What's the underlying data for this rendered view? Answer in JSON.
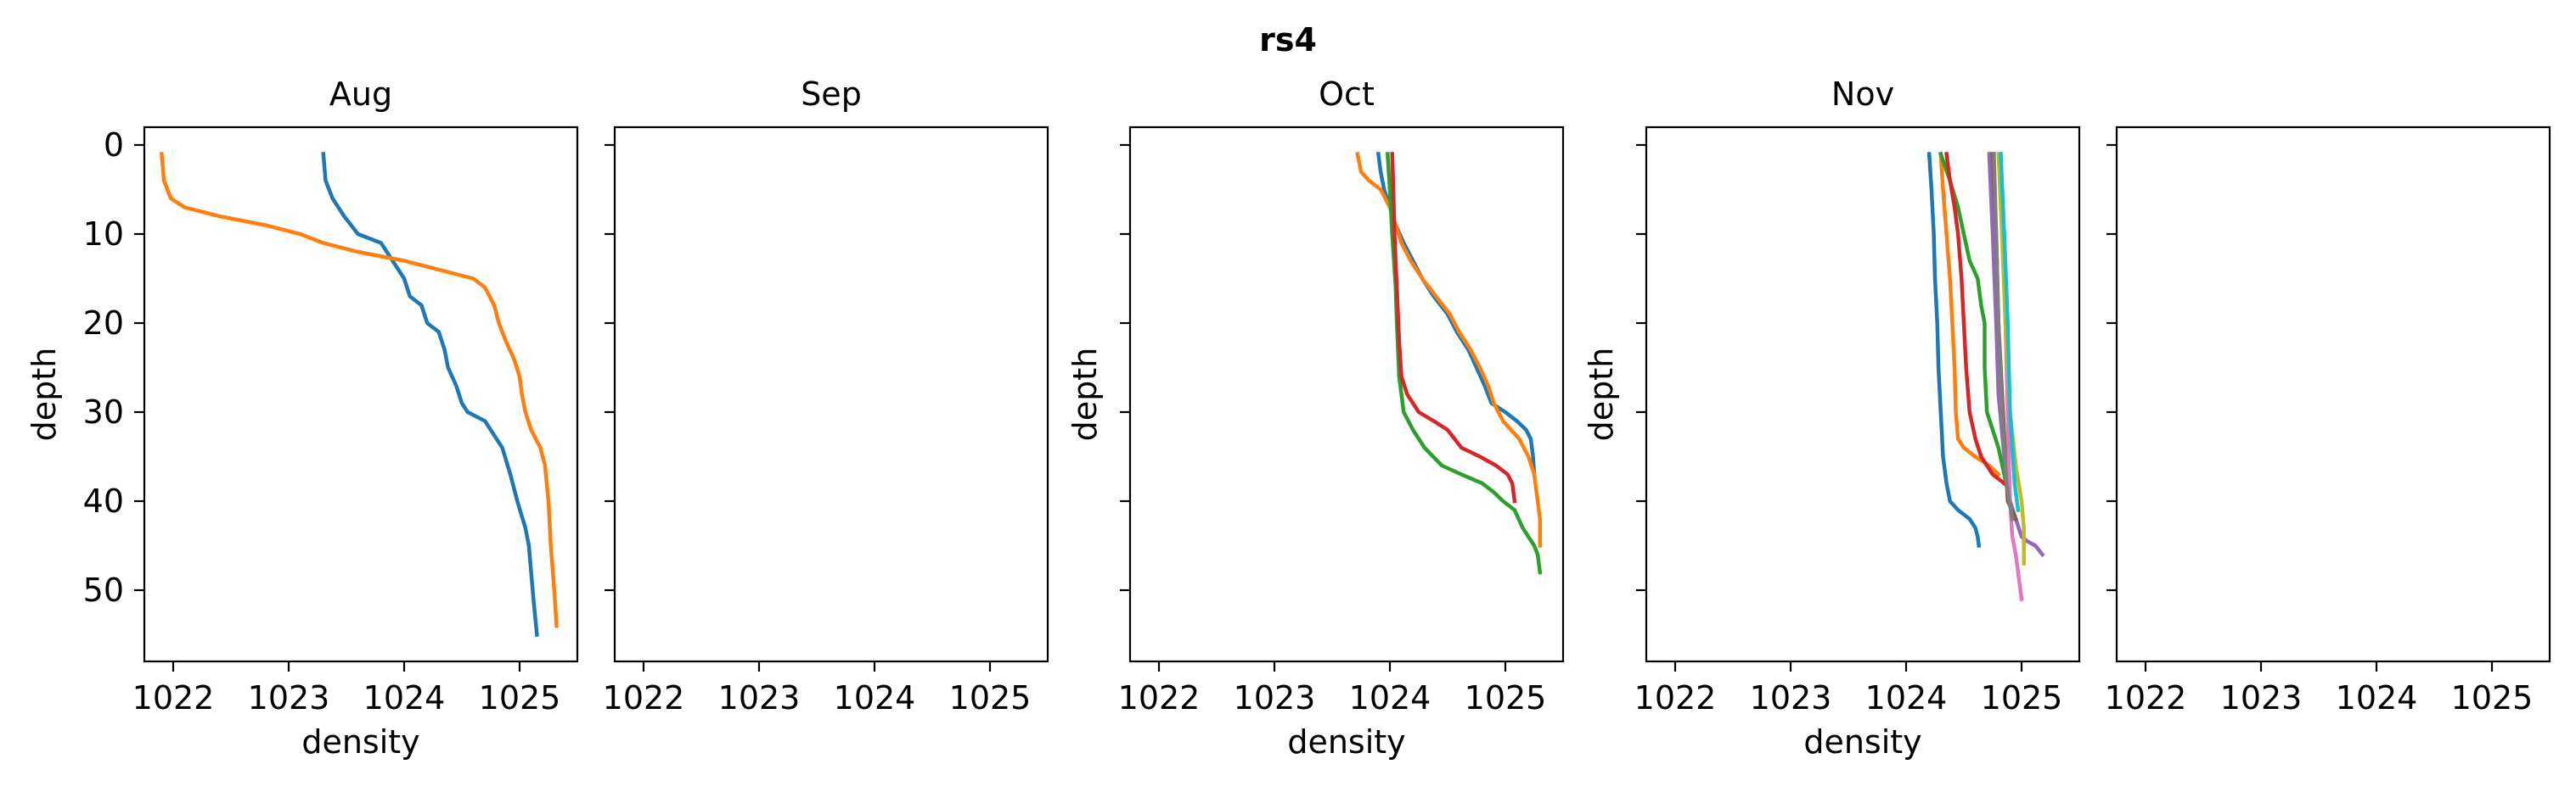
{
  "figure": {
    "suptitle": "rs4"
  },
  "colors": {
    "C0": "#1f77b4",
    "C1": "#ff7f0e",
    "C2": "#2ca02c",
    "C3": "#d62728",
    "C4": "#9467bd",
    "C5": "#8c564b",
    "C6": "#e377c2",
    "C7": "#7f7f7f",
    "C8": "#bcbd22",
    "C9": "#17becf"
  },
  "chart_data": [
    {
      "type": "line",
      "title": "Aug",
      "xlabel": "density",
      "ylabel": "depth",
      "xlim": [
        1021.75,
        1025.5
      ],
      "ylim": [
        58,
        -2
      ],
      "xticks": [
        1022,
        1023,
        1024,
        1025
      ],
      "yticks": [
        0,
        10,
        20,
        30,
        40,
        50
      ],
      "show_yticklabels": true,
      "series": [
        {
          "color": "C0",
          "points": [
            [
              1023.3,
              1
            ],
            [
              1023.32,
              4
            ],
            [
              1023.38,
              6
            ],
            [
              1023.48,
              8
            ],
            [
              1023.6,
              10
            ],
            [
              1023.8,
              11
            ],
            [
              1023.85,
              12
            ],
            [
              1023.9,
              13
            ],
            [
              1023.95,
              14
            ],
            [
              1024.0,
              15
            ],
            [
              1024.05,
              17
            ],
            [
              1024.15,
              18
            ],
            [
              1024.2,
              20
            ],
            [
              1024.3,
              21
            ],
            [
              1024.35,
              23
            ],
            [
              1024.38,
              25
            ],
            [
              1024.45,
              27
            ],
            [
              1024.5,
              29
            ],
            [
              1024.55,
              30
            ],
            [
              1024.7,
              31
            ],
            [
              1024.85,
              34
            ],
            [
              1024.92,
              37
            ],
            [
              1024.98,
              40
            ],
            [
              1025.05,
              43
            ],
            [
              1025.08,
              45
            ],
            [
              1025.1,
              48
            ],
            [
              1025.12,
              51
            ],
            [
              1025.15,
              55
            ]
          ]
        },
        {
          "color": "C1",
          "points": [
            [
              1021.9,
              1
            ],
            [
              1021.92,
              4
            ],
            [
              1021.98,
              6
            ],
            [
              1022.1,
              7
            ],
            [
              1022.4,
              8
            ],
            [
              1022.8,
              9
            ],
            [
              1023.1,
              10
            ],
            [
              1023.3,
              11
            ],
            [
              1023.6,
              12
            ],
            [
              1024.0,
              13
            ],
            [
              1024.3,
              14
            ],
            [
              1024.6,
              15
            ],
            [
              1024.7,
              16
            ],
            [
              1024.78,
              18
            ],
            [
              1024.82,
              20
            ],
            [
              1024.88,
              22
            ],
            [
              1024.95,
              24
            ],
            [
              1025.0,
              26
            ],
            [
              1025.02,
              28
            ],
            [
              1025.05,
              30
            ],
            [
              1025.1,
              32
            ],
            [
              1025.18,
              34
            ],
            [
              1025.22,
              36
            ],
            [
              1025.25,
              40
            ],
            [
              1025.27,
              45
            ],
            [
              1025.3,
              50
            ],
            [
              1025.32,
              54
            ]
          ]
        }
      ]
    },
    {
      "type": "line",
      "title": "Sep",
      "xlabel": "",
      "ylabel": "",
      "xlim": [
        1021.75,
        1025.5
      ],
      "ylim": [
        58,
        -2
      ],
      "xticks": [
        1022,
        1023,
        1024,
        1025
      ],
      "yticks": [
        0,
        10,
        20,
        30,
        40,
        50
      ],
      "show_yticklabels": false,
      "series": []
    },
    {
      "type": "line",
      "title": "Oct",
      "xlabel": "density",
      "ylabel": "depth",
      "xlim": [
        1021.75,
        1025.5
      ],
      "ylim": [
        58,
        -2
      ],
      "xticks": [
        1022,
        1023,
        1024,
        1025
      ],
      "yticks": [
        0,
        10,
        20,
        30,
        40,
        50
      ],
      "show_yticklabels": false,
      "series": [
        {
          "color": "C0",
          "points": [
            [
              1023.9,
              1
            ],
            [
              1023.92,
              3
            ],
            [
              1023.95,
              5
            ],
            [
              1024.0,
              7
            ],
            [
              1024.05,
              9
            ],
            [
              1024.12,
              11
            ],
            [
              1024.2,
              13
            ],
            [
              1024.28,
              15
            ],
            [
              1024.38,
              17
            ],
            [
              1024.5,
              19
            ],
            [
              1024.58,
              21
            ],
            [
              1024.68,
              23
            ],
            [
              1024.75,
              25
            ],
            [
              1024.82,
              27
            ],
            [
              1024.88,
              29
            ],
            [
              1025.0,
              30
            ],
            [
              1025.1,
              31
            ],
            [
              1025.18,
              32
            ],
            [
              1025.22,
              33
            ],
            [
              1025.24,
              35
            ],
            [
              1025.25,
              37
            ]
          ]
        },
        {
          "color": "C1",
          "points": [
            [
              1023.72,
              1
            ],
            [
              1023.75,
              3
            ],
            [
              1023.82,
              4
            ],
            [
              1023.92,
              5
            ],
            [
              1024.0,
              7
            ],
            [
              1024.05,
              9
            ],
            [
              1024.1,
              11
            ],
            [
              1024.18,
              13
            ],
            [
              1024.28,
              15
            ],
            [
              1024.4,
              17
            ],
            [
              1024.52,
              19
            ],
            [
              1024.6,
              21
            ],
            [
              1024.7,
              23
            ],
            [
              1024.78,
              25
            ],
            [
              1024.85,
              27
            ],
            [
              1024.9,
              29
            ],
            [
              1024.98,
              31
            ],
            [
              1025.05,
              32
            ],
            [
              1025.12,
              33
            ],
            [
              1025.2,
              35
            ],
            [
              1025.25,
              37
            ],
            [
              1025.28,
              40
            ],
            [
              1025.3,
              42
            ],
            [
              1025.3,
              45
            ]
          ]
        },
        {
          "color": "C2",
          "points": [
            [
              1023.98,
              1
            ],
            [
              1024.0,
              5
            ],
            [
              1024.02,
              10
            ],
            [
              1024.05,
              16
            ],
            [
              1024.06,
              20
            ],
            [
              1024.08,
              26
            ],
            [
              1024.12,
              30
            ],
            [
              1024.2,
              32
            ],
            [
              1024.3,
              34
            ],
            [
              1024.45,
              36
            ],
            [
              1024.62,
              37
            ],
            [
              1024.8,
              38
            ],
            [
              1024.9,
              39
            ],
            [
              1024.98,
              40
            ],
            [
              1025.08,
              41
            ],
            [
              1025.15,
              43
            ],
            [
              1025.2,
              44
            ],
            [
              1025.25,
              45
            ],
            [
              1025.28,
              46
            ],
            [
              1025.3,
              48
            ]
          ]
        },
        {
          "color": "C3",
          "points": [
            [
              1024.02,
              1
            ],
            [
              1024.03,
              5
            ],
            [
              1024.04,
              10
            ],
            [
              1024.06,
              16
            ],
            [
              1024.08,
              22
            ],
            [
              1024.1,
              26
            ],
            [
              1024.15,
              28
            ],
            [
              1024.25,
              30
            ],
            [
              1024.38,
              31
            ],
            [
              1024.5,
              32
            ],
            [
              1024.62,
              34
            ],
            [
              1024.78,
              35
            ],
            [
              1024.92,
              36
            ],
            [
              1025.02,
              37
            ],
            [
              1025.06,
              38
            ],
            [
              1025.08,
              40
            ]
          ]
        }
      ]
    },
    {
      "type": "line",
      "title": "Nov",
      "xlabel": "density",
      "ylabel": "depth",
      "xlim": [
        1021.75,
        1025.5
      ],
      "ylim": [
        58,
        -2
      ],
      "xticks": [
        1022,
        1023,
        1024,
        1025
      ],
      "yticks": [
        0,
        10,
        20,
        30,
        40,
        50
      ],
      "show_yticklabels": false,
      "series": [
        {
          "color": "C0",
          "points": [
            [
              1024.2,
              1
            ],
            [
              1024.22,
              5
            ],
            [
              1024.24,
              10
            ],
            [
              1024.25,
              15
            ],
            [
              1024.27,
              20
            ],
            [
              1024.28,
              25
            ],
            [
              1024.3,
              30
            ],
            [
              1024.32,
              35
            ],
            [
              1024.35,
              38
            ],
            [
              1024.38,
              40
            ],
            [
              1024.45,
              41
            ],
            [
              1024.55,
              42
            ],
            [
              1024.6,
              43
            ],
            [
              1024.62,
              44
            ],
            [
              1024.63,
              45
            ]
          ]
        },
        {
          "color": "C1",
          "points": [
            [
              1024.3,
              1
            ],
            [
              1024.32,
              5
            ],
            [
              1024.35,
              10
            ],
            [
              1024.38,
              15
            ],
            [
              1024.4,
              20
            ],
            [
              1024.42,
              25
            ],
            [
              1024.43,
              30
            ],
            [
              1024.45,
              33
            ],
            [
              1024.5,
              34
            ],
            [
              1024.6,
              35
            ],
            [
              1024.72,
              36
            ],
            [
              1024.8,
              37
            ]
          ]
        },
        {
          "color": "C2",
          "points": [
            [
              1024.3,
              1
            ],
            [
              1024.38,
              4
            ],
            [
              1024.45,
              7
            ],
            [
              1024.5,
              10
            ],
            [
              1024.55,
              13
            ],
            [
              1024.62,
              15
            ],
            [
              1024.65,
              18
            ],
            [
              1024.68,
              20
            ],
            [
              1024.68,
              25
            ],
            [
              1024.7,
              30
            ],
            [
              1024.75,
              32
            ],
            [
              1024.8,
              34
            ],
            [
              1024.85,
              37
            ],
            [
              1024.88,
              39
            ]
          ]
        },
        {
          "color": "C3",
          "points": [
            [
              1024.35,
              1
            ],
            [
              1024.38,
              4
            ],
            [
              1024.42,
              7
            ],
            [
              1024.45,
              10
            ],
            [
              1024.48,
              15
            ],
            [
              1024.5,
              20
            ],
            [
              1024.52,
              25
            ],
            [
              1024.55,
              30
            ],
            [
              1024.6,
              33
            ],
            [
              1024.65,
              35
            ],
            [
              1024.75,
              37
            ],
            [
              1024.85,
              38
            ]
          ]
        },
        {
          "color": "C4",
          "points": [
            [
              1024.72,
              1
            ],
            [
              1024.75,
              10
            ],
            [
              1024.78,
              20
            ],
            [
              1024.8,
              28
            ],
            [
              1024.85,
              35
            ],
            [
              1024.9,
              40
            ],
            [
              1024.95,
              42
            ],
            [
              1025.0,
              44
            ],
            [
              1025.05,
              44.5
            ],
            [
              1025.12,
              45
            ],
            [
              1025.18,
              46
            ]
          ]
        },
        {
          "color": "C5",
          "points": [
            [
              1024.75,
              1
            ],
            [
              1024.78,
              10
            ],
            [
              1024.8,
              20
            ],
            [
              1024.84,
              30
            ],
            [
              1024.88,
              40
            ],
            [
              1024.95,
              42
            ]
          ]
        },
        {
          "color": "C6",
          "points": [
            [
              1024.82,
              1
            ],
            [
              1024.84,
              10
            ],
            [
              1024.86,
              20
            ],
            [
              1024.88,
              30
            ],
            [
              1024.9,
              40
            ],
            [
              1024.92,
              44
            ],
            [
              1024.95,
              46
            ],
            [
              1024.97,
              48
            ],
            [
              1025.0,
              51
            ]
          ]
        },
        {
          "color": "C7",
          "points": [
            [
              1024.76,
              1
            ],
            [
              1024.78,
              10
            ],
            [
              1024.8,
              20
            ],
            [
              1024.83,
              30
            ],
            [
              1024.87,
              38
            ],
            [
              1024.92,
              42
            ]
          ]
        },
        {
          "color": "C8",
          "points": [
            [
              1024.8,
              1
            ],
            [
              1024.83,
              10
            ],
            [
              1024.86,
              20
            ],
            [
              1024.9,
              30
            ],
            [
              1024.95,
              36
            ],
            [
              1025.0,
              40
            ],
            [
              1025.02,
              43
            ],
            [
              1025.02,
              47
            ]
          ]
        },
        {
          "color": "C9",
          "points": [
            [
              1024.82,
              1
            ],
            [
              1024.85,
              10
            ],
            [
              1024.88,
              20
            ],
            [
              1024.9,
              30
            ],
            [
              1024.94,
              38
            ],
            [
              1024.97,
              41
            ]
          ]
        }
      ]
    },
    {
      "type": "line",
      "title": "",
      "xlabel": "",
      "ylabel": "",
      "xlim": [
        1021.75,
        1025.5
      ],
      "ylim": [
        58,
        -2
      ],
      "xticks": [
        1022,
        1023,
        1024,
        1025
      ],
      "yticks": [
        0,
        10,
        20,
        30,
        40,
        50
      ],
      "show_yticklabels": false,
      "series": []
    }
  ]
}
